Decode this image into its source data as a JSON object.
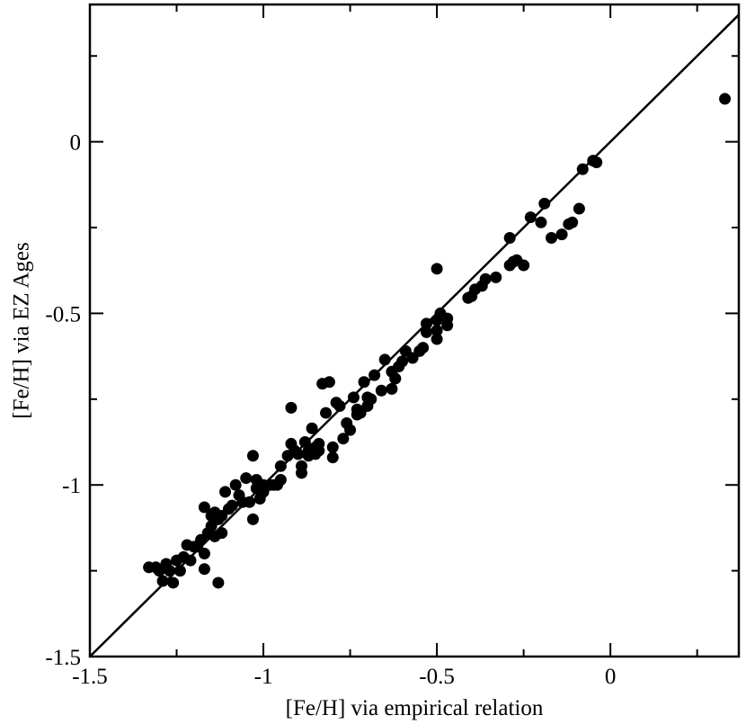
{
  "chart_data": {
    "type": "scatter",
    "xlabel": "[Fe/H] via empirical relation",
    "ylabel": "[Fe/H] via EZ Ages",
    "xlim": [
      -1.5,
      0.37
    ],
    "ylim": [
      -1.5,
      0.4
    ],
    "grid": false,
    "legend": "none",
    "x_ticks": [
      -1.5,
      -1,
      -0.5,
      0
    ],
    "x_tick_labels": [
      "-1.5",
      "-1",
      "-0.5",
      "0"
    ],
    "x_minor_ticks": [
      -1.25,
      -0.75,
      -0.25,
      0.25
    ],
    "y_ticks": [
      -1.5,
      -1,
      -0.5,
      0
    ],
    "y_tick_labels": [
      "-1.5",
      "-1",
      "-0.5",
      "0"
    ],
    "y_minor_ticks": [
      -1.25,
      -0.75,
      -0.25,
      0.25
    ],
    "reference_line": {
      "from": [
        -1.5,
        -1.5
      ],
      "to": [
        0.37,
        0.37
      ]
    },
    "marker_color": "#000000",
    "points": [
      [
        0.33,
        0.125
      ],
      [
        -0.05,
        -0.055
      ],
      [
        -0.04,
        -0.06
      ],
      [
        -0.08,
        -0.08
      ],
      [
        -0.09,
        -0.195
      ],
      [
        -0.11,
        -0.235
      ],
      [
        -0.12,
        -0.24
      ],
      [
        -0.14,
        -0.27
      ],
      [
        -0.17,
        -0.28
      ],
      [
        -0.19,
        -0.18
      ],
      [
        -0.2,
        -0.235
      ],
      [
        -0.23,
        -0.22
      ],
      [
        -0.25,
        -0.36
      ],
      [
        -0.27,
        -0.345
      ],
      [
        -0.28,
        -0.35
      ],
      [
        -0.29,
        -0.28
      ],
      [
        -0.29,
        -0.36
      ],
      [
        -0.33,
        -0.395
      ],
      [
        -0.36,
        -0.4
      ],
      [
        -0.37,
        -0.42
      ],
      [
        -0.39,
        -0.43
      ],
      [
        -0.4,
        -0.45
      ],
      [
        -0.5,
        -0.37
      ],
      [
        -0.47,
        -0.515
      ],
      [
        -0.47,
        -0.535
      ],
      [
        -0.49,
        -0.5
      ],
      [
        -0.5,
        -0.52
      ],
      [
        -0.5,
        -0.55
      ],
      [
        -0.5,
        -0.575
      ],
      [
        -0.53,
        -0.53
      ],
      [
        -0.53,
        -0.555
      ],
      [
        -0.55,
        -0.61
      ],
      [
        -0.57,
        -0.63
      ],
      [
        -0.59,
        -0.61
      ],
      [
        -0.6,
        -0.64
      ],
      [
        -0.61,
        -0.655
      ],
      [
        -0.62,
        -0.69
      ],
      [
        -0.63,
        -0.67
      ],
      [
        -0.65,
        -0.635
      ],
      [
        -0.66,
        -0.725
      ],
      [
        -0.68,
        -0.68
      ],
      [
        -0.69,
        -0.75
      ],
      [
        -0.7,
        -0.745
      ],
      [
        -0.7,
        -0.77
      ],
      [
        -0.71,
        -0.7
      ],
      [
        -0.72,
        -0.79
      ],
      [
        -0.73,
        -0.795
      ],
      [
        -0.74,
        -0.745
      ],
      [
        -0.75,
        -0.84
      ],
      [
        -0.76,
        -0.82
      ],
      [
        -0.77,
        -0.865
      ],
      [
        -0.78,
        -0.77
      ],
      [
        -0.79,
        -0.76
      ],
      [
        -0.8,
        -0.89
      ],
      [
        -0.8,
        -0.92
      ],
      [
        -0.81,
        -0.7
      ],
      [
        -0.82,
        -0.79
      ],
      [
        -0.83,
        -0.705
      ],
      [
        -0.84,
        -0.9
      ],
      [
        -0.85,
        -0.89
      ],
      [
        -0.85,
        -0.91
      ],
      [
        -0.86,
        -0.835
      ],
      [
        -0.87,
        -0.915
      ],
      [
        -0.88,
        -0.875
      ],
      [
        -0.89,
        -0.965
      ],
      [
        -0.89,
        -0.945
      ],
      [
        -0.9,
        -0.91
      ],
      [
        -0.91,
        -0.9
      ],
      [
        -0.92,
        -0.775
      ],
      [
        -0.92,
        -0.88
      ],
      [
        -0.93,
        -0.915
      ],
      [
        -0.95,
        -0.945
      ],
      [
        -0.96,
        -1.0
      ],
      [
        -0.97,
        -1.0
      ],
      [
        -0.98,
        -1.0
      ],
      [
        -1.0,
        -1.02
      ],
      [
        -1.01,
        -1.04
      ],
      [
        -1.02,
        -0.985
      ],
      [
        -1.02,
        -1.01
      ],
      [
        -1.03,
        -0.915
      ],
      [
        -1.03,
        -1.1
      ],
      [
        -1.04,
        -1.05
      ],
      [
        -1.05,
        -0.98
      ],
      [
        -1.06,
        -1.05
      ],
      [
        -1.07,
        -1.03
      ],
      [
        -1.08,
        -1.0
      ],
      [
        -1.09,
        -1.06
      ],
      [
        -1.1,
        -1.07
      ],
      [
        -1.11,
        -1.02
      ],
      [
        -1.12,
        -1.09
      ],
      [
        -1.13,
        -1.1
      ],
      [
        -1.13,
        -1.285
      ],
      [
        -1.14,
        -1.08
      ],
      [
        -1.14,
        -1.15
      ],
      [
        -1.15,
        -1.12
      ],
      [
        -1.16,
        -1.14
      ],
      [
        -1.17,
        -1.2
      ],
      [
        -1.17,
        -1.245
      ],
      [
        -1.17,
        -1.065
      ],
      [
        -1.18,
        -1.16
      ],
      [
        -1.19,
        -1.18
      ],
      [
        -1.2,
        -1.18
      ],
      [
        -1.21,
        -1.22
      ],
      [
        -1.22,
        -1.175
      ],
      [
        -1.23,
        -1.21
      ],
      [
        -1.24,
        -1.25
      ],
      [
        -1.25,
        -1.22
      ],
      [
        -1.26,
        -1.285
      ],
      [
        -1.27,
        -1.25
      ],
      [
        -1.28,
        -1.23
      ],
      [
        -1.29,
        -1.28
      ],
      [
        -1.3,
        -1.25
      ],
      [
        -1.31,
        -1.24
      ],
      [
        -1.33,
        -1.24
      ],
      [
        -1.12,
        -1.14
      ],
      [
        -1.15,
        -1.09
      ],
      [
        -0.95,
        -0.985
      ],
      [
        -0.84,
        -0.88
      ],
      [
        -0.73,
        -0.78
      ],
      [
        -0.63,
        -0.72
      ],
      [
        -0.54,
        -0.6
      ],
      [
        -0.41,
        -0.455
      ],
      [
        -1.0,
        -1.0
      ],
      [
        -0.87,
        -0.9
      ],
      [
        -0.62,
        -0.69
      ]
    ]
  }
}
